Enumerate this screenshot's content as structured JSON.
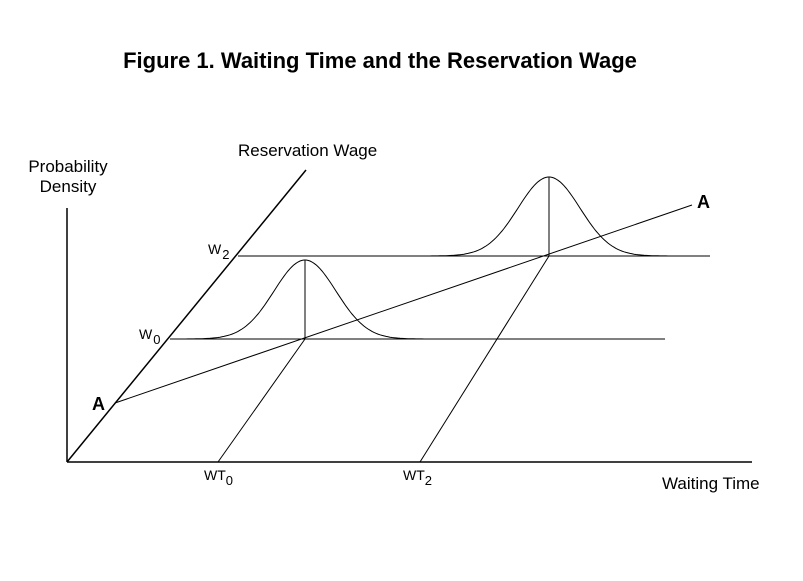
{
  "title": "Figure 1.  Waiting Time and the Reservation Wage",
  "axes": {
    "y_label_line1": "Probability",
    "y_label_line2": "Density",
    "diagonal_label": "Reservation Wage",
    "x_label": "Waiting Time"
  },
  "levels": {
    "w2_main": "W",
    "w2_sub": "2",
    "w0_main": "W",
    "w0_sub": "0"
  },
  "times": {
    "wt0_main": "WT",
    "wt0_sub": "0",
    "wt2_main": "WT",
    "wt2_sub": "2"
  },
  "line_a": {
    "start_label": "A",
    "end_label": "A"
  },
  "colors": {
    "ink": "#000000",
    "background": "#ffffff"
  }
}
